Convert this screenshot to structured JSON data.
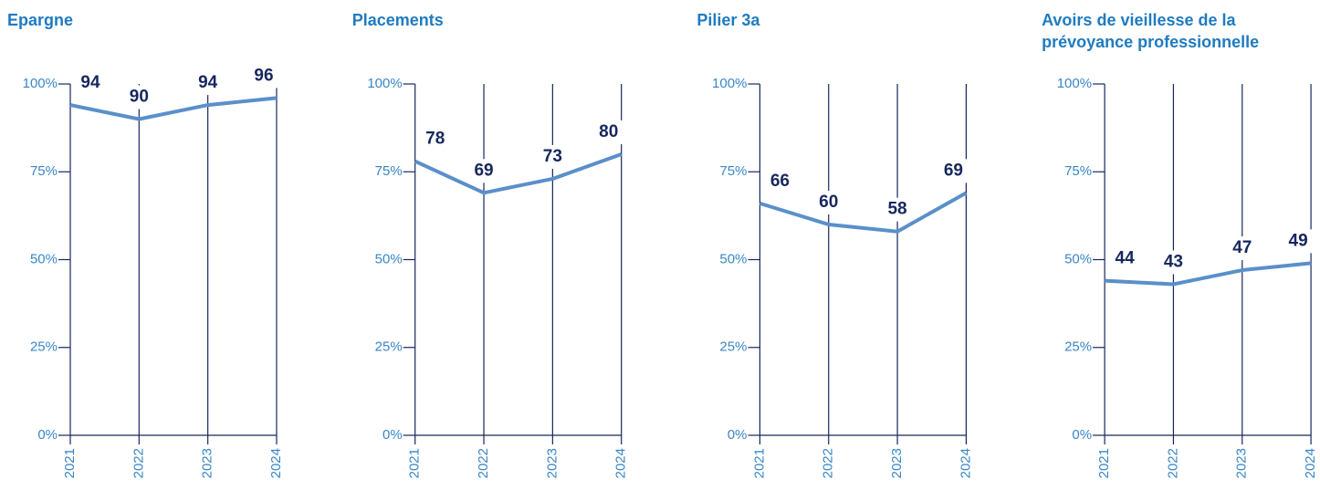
{
  "chart_data": [
    {
      "type": "line",
      "title": "Epargne",
      "categories": [
        "2021",
        "2022",
        "2023",
        "2024"
      ],
      "series": [
        {
          "color": "#5a8fca",
          "values": [
            94,
            90,
            94,
            96
          ]
        }
      ],
      "ylim": [
        0,
        100
      ],
      "yticks": [
        {
          "value": 0,
          "label": "0%"
        },
        {
          "value": 25,
          "label": "25%"
        },
        {
          "value": 50,
          "label": "50%"
        },
        {
          "value": 75,
          "label": "75%"
        },
        {
          "value": 100,
          "label": "100%"
        }
      ]
    },
    {
      "type": "line",
      "title": "Placements",
      "categories": [
        "2021",
        "2022",
        "2023",
        "2024"
      ],
      "series": [
        {
          "color": "#5a8fca",
          "values": [
            78,
            69,
            73,
            80
          ]
        }
      ],
      "ylim": [
        0,
        100
      ],
      "yticks": [
        {
          "value": 0,
          "label": "0%"
        },
        {
          "value": 25,
          "label": "25%"
        },
        {
          "value": 50,
          "label": "50%"
        },
        {
          "value": 75,
          "label": "75%"
        },
        {
          "value": 100,
          "label": "100%"
        }
      ]
    },
    {
      "type": "line",
      "title": "Pilier 3a",
      "categories": [
        "2021",
        "2022",
        "2023",
        "2024"
      ],
      "series": [
        {
          "color": "#5a8fca",
          "values": [
            66,
            60,
            58,
            69
          ]
        }
      ],
      "ylim": [
        0,
        100
      ],
      "yticks": [
        {
          "value": 0,
          "label": "0%"
        },
        {
          "value": 25,
          "label": "25%"
        },
        {
          "value": 50,
          "label": "50%"
        },
        {
          "value": 75,
          "label": "75%"
        },
        {
          "value": 100,
          "label": "100%"
        }
      ]
    },
    {
      "type": "line",
      "title": "Avoirs de vieillesse de la prévoyance professionnelle",
      "categories": [
        "2021",
        "2022",
        "2023",
        "2024"
      ],
      "series": [
        {
          "color": "#5a8fca",
          "values": [
            44,
            43,
            47,
            49
          ]
        }
      ],
      "ylim": [
        0,
        100
      ],
      "yticks": [
        {
          "value": 0,
          "label": "0%"
        },
        {
          "value": 25,
          "label": "25%"
        },
        {
          "value": 50,
          "label": "50%"
        },
        {
          "value": 75,
          "label": "75%"
        },
        {
          "value": 100,
          "label": "100%"
        }
      ]
    }
  ]
}
